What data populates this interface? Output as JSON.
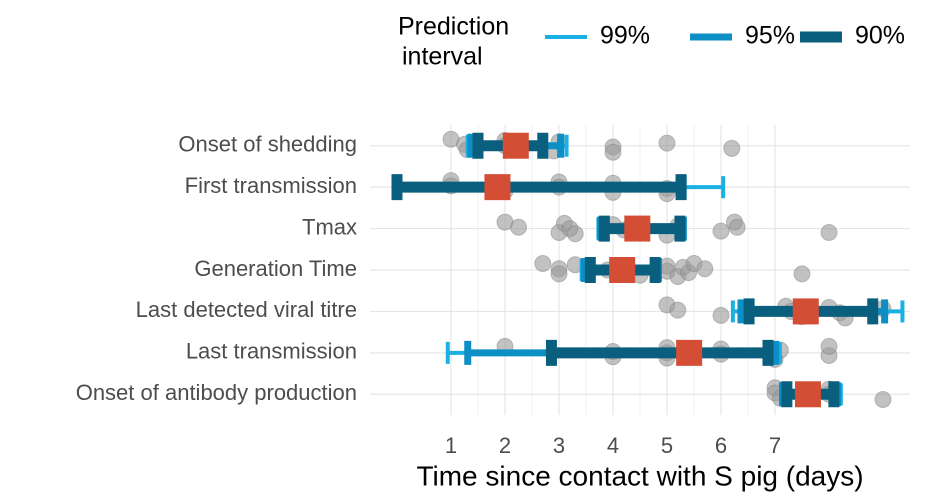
{
  "chart_data": {
    "type": "interval",
    "legend_title": [
      "Prediction",
      "interval"
    ],
    "x_label": "Time since contact with S pig (days)",
    "categories": [
      "Onset of shedding",
      "First transmission",
      "Tmax",
      "Generation Time",
      "Last detected viral titre",
      "Last transmission",
      "Onset of antibody production"
    ],
    "xlim": [
      -0.5,
      9.5
    ],
    "xticks": [
      1,
      2,
      3,
      4,
      5,
      6,
      7
    ],
    "grid": true,
    "series": [
      {
        "name": "99%",
        "color": "#1ab0e3",
        "lower": [
          1.31,
          0,
          3.73,
          3.42,
          6.22,
          0.94,
          7.11
        ],
        "upper": [
          3.14,
          6.04,
          5.33,
          4.87,
          9.36,
          7.09,
          8.22
        ]
      },
      {
        "name": "95%",
        "color": "#0c8fc4",
        "lower": [
          1.37,
          0,
          3.77,
          3.47,
          6.37,
          1.31,
          7.14
        ],
        "upper": [
          3.03,
          5.3,
          5.3,
          4.84,
          9.03,
          7.01,
          8.16
        ]
      },
      {
        "name": "90%",
        "color": "#0b5f7e",
        "lower": [
          1.5,
          0,
          3.84,
          3.58,
          6.52,
          2.86,
          7.22
        ],
        "upper": [
          2.7,
          5.26,
          5.24,
          4.78,
          8.81,
          6.87,
          8.09
        ]
      }
    ],
    "median": {
      "color": "#d44e35",
      "values": [
        2.2,
        1.86,
        4.45,
        4.17,
        7.57,
        5.41,
        7.61
      ]
    },
    "points": {
      "color": "#9a9a9a",
      "values": [
        [
          1.0,
          1.25,
          1.3,
          2.0,
          2.0,
          2.9,
          3.0,
          4.0,
          4.0,
          5.0,
          6.2
        ],
        [
          1.0,
          1.0,
          2.0,
          3.0,
          3.0,
          4.0,
          4.0,
          5.0,
          5.0
        ],
        [
          2.0,
          2.25,
          3.0,
          3.1,
          3.2,
          3.3,
          4.0,
          4.2,
          5.0,
          5.2,
          6.0,
          6.25,
          6.3,
          8.0
        ],
        [
          2.7,
          3.0,
          3.0,
          3.3,
          3.9,
          4.5,
          5.0,
          5.0,
          5.2,
          5.3,
          5.4,
          5.5,
          5.7,
          7.5
        ],
        [
          5.0,
          5.2,
          6.0,
          7.2,
          7.3,
          7.5,
          8.0,
          8.2,
          8.3,
          9.0
        ],
        [
          2.0,
          4.0,
          4.0,
          5.0,
          5.0,
          5.0,
          6.0,
          6.0,
          7.0,
          7.1,
          8.0,
          8.0
        ],
        [
          7.0,
          7.0,
          7.1,
          8.0,
          8.0,
          9.0
        ]
      ]
    }
  }
}
